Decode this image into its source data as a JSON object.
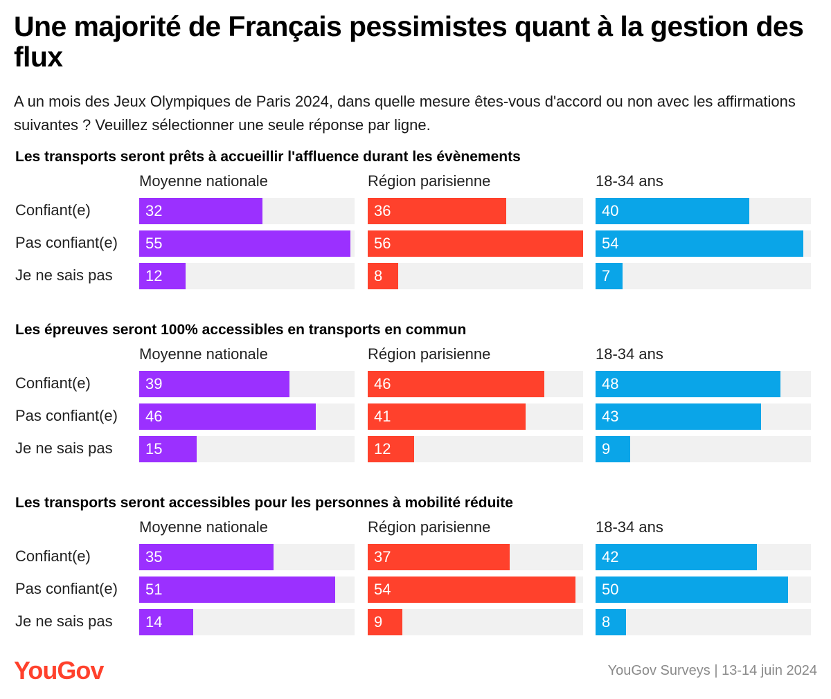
{
  "title": "Une majorité de Français pessimistes quant à la gestion des flux",
  "subtitle": "A un mois des Jeux Olympiques de Paris 2024, dans quelle mesure êtes-vous d'accord ou non avec les affirmations suivantes ? Veuillez sélectionner une seule réponse par ligne.",
  "brand": "YouGov",
  "source": "YouGov Surveys | 13-14 juin 2024",
  "chart_data": {
    "type": "bar",
    "orientation": "horizontal",
    "xlim": [
      0,
      56
    ],
    "groups": [
      "Moyenne nationale",
      "Région parisienne",
      "18-34 ans"
    ],
    "colors": {
      "Moyenne nationale": "#9b30ff",
      "Région parisienne": "#ff412c",
      "18-34 ans": "#0aa5e8"
    },
    "categories": [
      "Confiant(e)",
      "Pas confiant(e)",
      "Je ne sais pas"
    ],
    "panels": [
      {
        "title": "Les transports seront prêts à accueillir l'affluence durant les évènements",
        "series": [
          {
            "name": "Moyenne nationale",
            "values": [
              32,
              55,
              12
            ]
          },
          {
            "name": "Région parisienne",
            "values": [
              36,
              56,
              8
            ]
          },
          {
            "name": "18-34 ans",
            "values": [
              40,
              54,
              7
            ]
          }
        ]
      },
      {
        "title": "Les épreuves seront 100% accessibles en transports en commun",
        "series": [
          {
            "name": "Moyenne nationale",
            "values": [
              39,
              46,
              15
            ]
          },
          {
            "name": "Région parisienne",
            "values": [
              46,
              41,
              12
            ]
          },
          {
            "name": "18-34 ans",
            "values": [
              48,
              43,
              9
            ]
          }
        ]
      },
      {
        "title": "Les transports seront accessibles pour les personnes à mobilité réduite",
        "series": [
          {
            "name": "Moyenne nationale",
            "values": [
              35,
              51,
              14
            ]
          },
          {
            "name": "Région parisienne",
            "values": [
              37,
              54,
              9
            ]
          },
          {
            "name": "18-34 ans",
            "values": [
              42,
              50,
              8
            ]
          }
        ]
      }
    ]
  }
}
